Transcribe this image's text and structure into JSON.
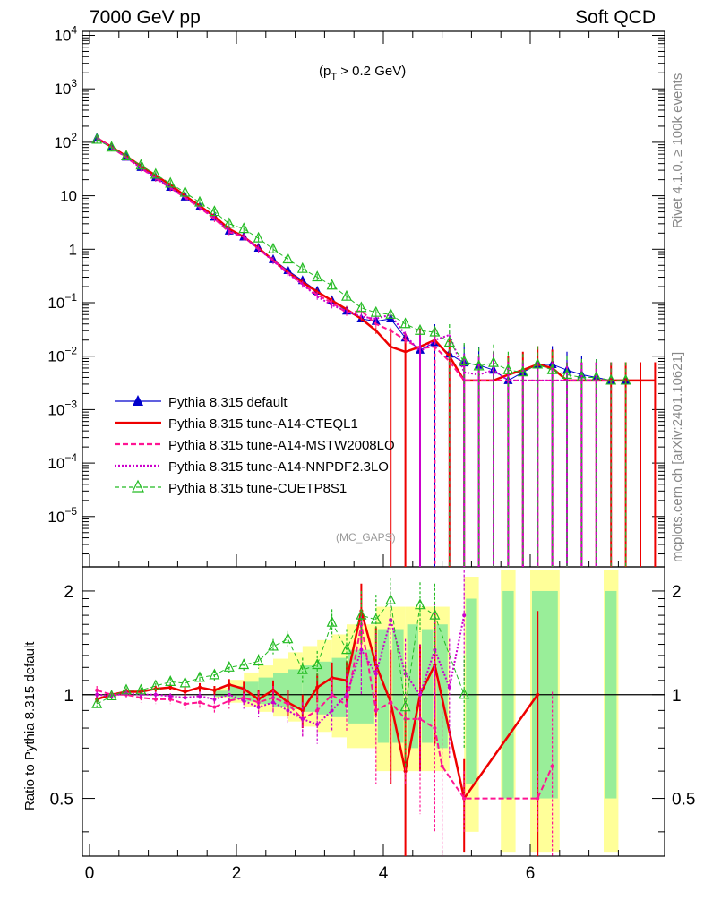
{
  "header": {
    "left_title": "7000 GeV pp",
    "right_title": "Soft QCD"
  },
  "side_labels": {
    "rivet": "Rivet 4.1.0, ≥ 100k events",
    "mcplots": "mcplots.cern.ch [arXiv:2401.10621]"
  },
  "chart_data": {
    "type": "line",
    "annotation": "(p_T > 0.2 GeV)",
    "annotation_parts": {
      "pre": "(p",
      "sub": "T",
      "post": " > 0.2 GeV)"
    },
    "watermark": "(MC_GAPS)",
    "main_panel": {
      "yscale": "log",
      "ylim": [
        1e-06,
        10000
      ],
      "y_tick_labels": [
        "10^4",
        "10^3",
        "10^2",
        "10",
        "1",
        "10^-1",
        "10^-2",
        "10^-3",
        "10^-4",
        "10^-5"
      ]
    },
    "ratio_panel": {
      "ylabel": "Ratio to Pythia 8.315 default",
      "ylim": [
        0.34,
        2.35
      ],
      "y_tick_labels": [
        "0.5",
        "1",
        "2"
      ]
    },
    "x_axis": {
      "xlim": [
        -0.1,
        7.8
      ],
      "tick_labels": [
        "0",
        "2",
        "4",
        "6"
      ]
    },
    "series": [
      {
        "name": "Pythia 8.315 default",
        "color": "#0000cc",
        "marker": "filled-triangle",
        "x": [
          0.1,
          0.3,
          0.5,
          0.7,
          0.9,
          1.1,
          1.3,
          1.5,
          1.7,
          1.9,
          2.1,
          2.3,
          2.5,
          2.7,
          2.9,
          3.1,
          3.3,
          3.5,
          3.7,
          3.9,
          4.1,
          4.3,
          4.5,
          4.7,
          4.9,
          5.1,
          5.3,
          5.5,
          5.7,
          5.9,
          6.1,
          6.3,
          6.5,
          6.7,
          6.9,
          7.1,
          7.3
        ],
        "y": [
          120,
          82,
          53,
          34,
          22,
          14.5,
          9.5,
          6.2,
          4.0,
          2.2,
          1.7,
          1.05,
          0.64,
          0.4,
          0.26,
          0.165,
          0.11,
          0.07,
          0.05,
          0.045,
          0.05,
          0.022,
          0.013,
          0.018,
          0.011,
          0.0075,
          0.0068,
          0.0055,
          0.0035,
          0.005,
          0.007,
          0.007,
          0.0055,
          0.0045,
          0.004,
          0.0035,
          0.0035
        ],
        "ratio": null
      },
      {
        "name": "Pythia 8.315 tune-A14-CTEQL1",
        "color": "#ee0000",
        "marker": "none",
        "x": [
          0.1,
          0.3,
          0.5,
          0.7,
          0.9,
          1.1,
          1.3,
          1.5,
          1.7,
          1.9,
          2.1,
          2.3,
          2.5,
          2.7,
          2.9,
          3.1,
          3.3,
          3.5,
          3.7,
          3.9,
          4.1,
          4.3,
          4.5,
          4.7,
          4.9,
          5.1,
          5.3,
          5.5,
          5.7,
          5.9,
          6.1,
          6.3,
          6.5,
          6.7,
          6.9,
          7.1,
          7.3,
          7.5,
          7.7
        ],
        "y": [
          120,
          82,
          55,
          36,
          24,
          16,
          10,
          6.5,
          4.1,
          2.4,
          1.7,
          1.05,
          0.62,
          0.37,
          0.24,
          0.16,
          0.11,
          0.075,
          0.05,
          0.03,
          0.015,
          0.012,
          0.015,
          0.02,
          0.01,
          0.0035,
          0.0035,
          0.0035,
          0.0045,
          0.0055,
          0.007,
          0.006,
          0.0035,
          0.0035,
          0.0035,
          0.0035,
          0.0035,
          0.0035,
          0.0035
        ],
        "ratio_x": [
          0.1,
          0.3,
          0.5,
          0.7,
          0.9,
          1.1,
          1.3,
          1.5,
          1.7,
          1.9,
          2.1,
          2.3,
          2.5,
          2.7,
          2.9,
          3.1,
          3.3,
          3.5,
          3.7,
          3.9,
          4.1,
          4.3,
          4.5,
          4.7,
          5.1,
          6.1
        ],
        "ratio": [
          0.97,
          1.0,
          1.02,
          1.02,
          1.04,
          1.05,
          1.02,
          1.05,
          1.03,
          1.07,
          1.04,
          0.97,
          1.03,
          0.95,
          0.9,
          1.05,
          1.12,
          1.1,
          1.75,
          1.22,
          0.95,
          0.6,
          1.0,
          1.22,
          0.5,
          1.0
        ],
        "ratio_err": [
          0.02,
          0.02,
          0.02,
          0.02,
          0.02,
          0.02,
          0.03,
          0.03,
          0.03,
          0.04,
          0.05,
          0.06,
          0.07,
          0.08,
          0.1,
          0.1,
          0.12,
          0.15,
          0.35,
          0.35,
          0.4,
          0.3,
          0.4,
          0.5,
          0.15,
          0.75
        ]
      },
      {
        "name": "Pythia 8.315 tune-A14-MSTW2008LO",
        "color": "#ff1493",
        "marker": "none",
        "x": [
          0.1,
          0.3,
          0.5,
          0.7,
          0.9,
          1.1,
          1.3,
          1.5,
          1.7,
          1.9,
          2.1,
          2.3,
          2.5,
          2.7,
          2.9,
          3.1,
          3.3,
          3.5,
          3.7,
          3.9,
          4.1,
          4.3,
          4.5,
          4.7,
          4.9,
          5.1,
          5.3,
          5.5,
          5.7,
          5.9,
          6.1,
          6.3,
          6.5,
          6.7,
          6.9,
          7.1
        ],
        "y": [
          122,
          80,
          52,
          33,
          21,
          14,
          9.2,
          6.0,
          3.7,
          2.1,
          1.7,
          1.0,
          0.62,
          0.37,
          0.22,
          0.14,
          0.1,
          0.065,
          0.07,
          0.04,
          0.03,
          0.02,
          0.014,
          0.015,
          0.008,
          0.0035,
          0.0035,
          0.0035,
          0.0035,
          0.0035,
          0.0035,
          0.0035,
          0.0035,
          0.0035,
          0.0035,
          0.0035
        ],
        "ratio_x": [
          0.1,
          0.3,
          0.5,
          0.7,
          0.9,
          1.1,
          1.3,
          1.5,
          1.7,
          1.9,
          2.1,
          2.3,
          2.5,
          2.7,
          2.9,
          3.1,
          3.3,
          3.5,
          3.7,
          3.9,
          4.1,
          4.3,
          4.5,
          4.7,
          4.8,
          5.1,
          6.1,
          6.3
        ],
        "ratio": [
          1.03,
          1.0,
          1.0,
          0.98,
          0.97,
          0.97,
          0.94,
          0.95,
          0.92,
          0.96,
          0.98,
          0.95,
          0.98,
          0.94,
          0.85,
          0.9,
          1.0,
          0.93,
          1.6,
          0.9,
          0.95,
          0.85,
          0.85,
          0.8,
          0.62,
          0.5,
          0.5,
          0.62
        ],
        "ratio_err": [
          0.03,
          0.03,
          0.03,
          0.03,
          0.03,
          0.03,
          0.04,
          0.04,
          0.04,
          0.05,
          0.06,
          0.07,
          0.08,
          0.09,
          0.1,
          0.1,
          0.12,
          0.15,
          0.4,
          0.35,
          0.4,
          0.3,
          0.4,
          0.4,
          0.3,
          0.1,
          0.1,
          0.4
        ]
      },
      {
        "name": "Pythia 8.315 tune-A14-NNPDF2.3LO",
        "color": "#cc00cc",
        "marker": "none",
        "x": [
          0.1,
          0.3,
          0.5,
          0.7,
          0.9,
          1.1,
          1.3,
          1.5,
          1.7,
          1.9,
          2.1,
          2.3,
          2.5,
          2.7,
          2.9,
          3.1,
          3.3,
          3.5,
          3.7,
          3.9,
          4.1,
          4.3,
          4.5,
          4.7,
          4.9,
          5.1,
          5.3,
          5.5,
          5.7,
          5.9,
          6.1,
          6.3,
          6.5,
          6.7,
          6.9
        ],
        "y": [
          118,
          80,
          53,
          33,
          22,
          14,
          9.4,
          6.0,
          3.9,
          2.2,
          1.7,
          1.02,
          0.6,
          0.35,
          0.22,
          0.13,
          0.09,
          0.07,
          0.055,
          0.05,
          0.06,
          0.025,
          0.012,
          0.02,
          0.025,
          0.005,
          0.0045,
          0.0055,
          0.0035,
          0.0035,
          0.0035,
          0.0035,
          0.0035,
          0.0035,
          0.0035
        ],
        "ratio_x": [
          0.1,
          0.3,
          0.5,
          0.7,
          0.9,
          1.1,
          1.3,
          1.5,
          1.7,
          1.9,
          2.1,
          2.3,
          2.5,
          2.7,
          2.9,
          3.1,
          3.3,
          3.5,
          3.7,
          3.9,
          4.1,
          4.3,
          4.5,
          4.7,
          4.9,
          5.1
        ],
        "ratio": [
          1.0,
          0.99,
          1.01,
          1.0,
          1.0,
          0.99,
          0.98,
          0.99,
          0.97,
          1.0,
          0.96,
          0.92,
          0.95,
          0.9,
          0.85,
          0.82,
          0.9,
          1.0,
          1.35,
          1.15,
          1.65,
          1.15,
          1.0,
          1.35,
          1.05,
          1.7
        ],
        "ratio_err": [
          0.02,
          0.02,
          0.02,
          0.02,
          0.02,
          0.02,
          0.03,
          0.03,
          0.03,
          0.04,
          0.05,
          0.06,
          0.07,
          0.08,
          0.1,
          0.1,
          0.12,
          0.15,
          0.35,
          0.35,
          0.4,
          0.3,
          0.4,
          0.5,
          0.4,
          0.6
        ]
      },
      {
        "name": "Pythia 8.315 tune-CUETP8S1",
        "color": "#22bb22",
        "marker": "open-triangle",
        "x": [
          0.1,
          0.3,
          0.5,
          0.7,
          0.9,
          1.1,
          1.3,
          1.5,
          1.7,
          1.9,
          2.1,
          2.3,
          2.5,
          2.7,
          2.9,
          3.1,
          3.3,
          3.5,
          3.7,
          3.9,
          4.1,
          4.3,
          4.5,
          4.7,
          4.9,
          5.1,
          5.3,
          5.5,
          5.7,
          5.9,
          6.1,
          6.3,
          6.5,
          6.7,
          6.9,
          7.1,
          7.3
        ],
        "y": [
          112,
          80,
          55,
          37,
          25,
          17,
          11.5,
          7.5,
          5.0,
          3.0,
          2.4,
          1.6,
          1.0,
          0.65,
          0.43,
          0.3,
          0.21,
          0.13,
          0.08,
          0.065,
          0.06,
          0.04,
          0.03,
          0.028,
          0.018,
          0.008,
          0.0065,
          0.0075,
          0.0055,
          0.005,
          0.007,
          0.0055,
          0.0045,
          0.004,
          0.004,
          0.0035,
          0.0035
        ],
        "ratio_x": [
          0.1,
          0.3,
          0.5,
          0.7,
          0.9,
          1.1,
          1.3,
          1.5,
          1.7,
          1.9,
          2.1,
          2.3,
          2.5,
          2.7,
          2.9,
          3.1,
          3.3,
          3.5,
          3.7,
          3.9,
          4.1,
          4.3,
          4.5,
          4.7,
          5.1
        ],
        "ratio": [
          0.94,
          0.99,
          1.03,
          1.03,
          1.06,
          1.09,
          1.08,
          1.12,
          1.14,
          1.2,
          1.22,
          1.25,
          1.38,
          1.45,
          1.18,
          1.22,
          1.62,
          1.35,
          1.7,
          1.65,
          1.88,
          0.92,
          1.82,
          1.7,
          1.0
        ],
        "ratio_err": [
          0.02,
          0.02,
          0.02,
          0.02,
          0.02,
          0.03,
          0.03,
          0.03,
          0.04,
          0.04,
          0.05,
          0.06,
          0.07,
          0.08,
          0.1,
          0.12,
          0.15,
          0.2,
          0.3,
          0.3,
          0.3,
          0.3,
          0.3,
          0.4,
          0.3
        ]
      }
    ],
    "ratio_bands": {
      "green_x_ranges": [
        [
          3.5,
          3.9
        ],
        [
          3.9,
          4.1
        ],
        [
          4.1,
          4.3
        ],
        [
          4.3,
          4.5
        ],
        [
          4.5,
          4.7
        ],
        [
          4.7,
          4.9
        ],
        [
          5.1,
          5.3
        ],
        [
          5.6,
          5.8
        ],
        [
          6.0,
          6.4
        ],
        [
          7.0,
          7.2
        ]
      ],
      "green_half_width": [
        0.35,
        0.55,
        0.55,
        0.6,
        0.55,
        0.6,
        0.9,
        1.0,
        1.0,
        1.0
      ],
      "yellow_half_width": [
        0.6,
        0.8,
        0.8,
        0.8,
        0.8,
        0.8,
        1.2,
        1.3,
        1.3,
        1.3
      ]
    }
  }
}
